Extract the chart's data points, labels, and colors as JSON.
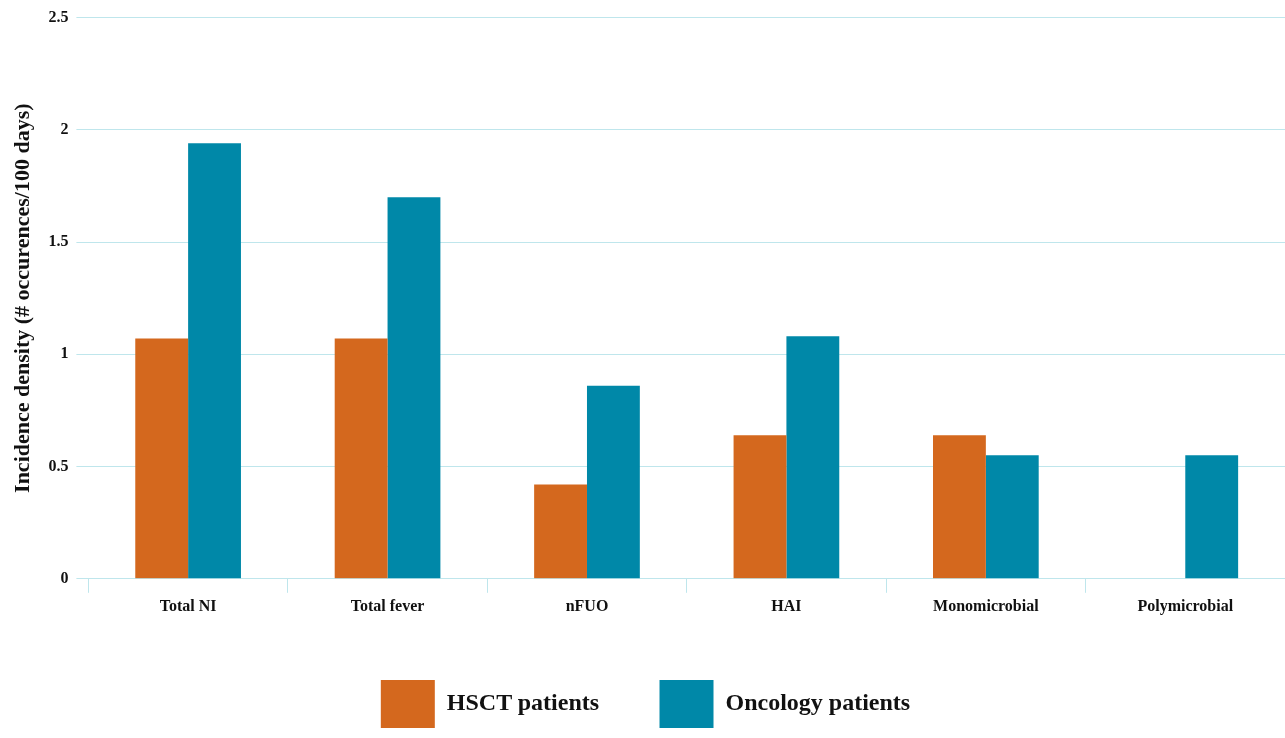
{
  "chart_data": {
    "type": "bar",
    "ylabel": "Incidence density (# occurences/100 days)",
    "categories": [
      "Total NI",
      "Total fever",
      "nFUO",
      "HAI",
      "Monomicrobial",
      "Polymicrobial"
    ],
    "series": [
      {
        "name": "HSCT patients",
        "color": "#d4681e",
        "values": [
          1.07,
          1.07,
          0.42,
          0.64,
          0.64,
          0
        ]
      },
      {
        "name": "Oncology patients",
        "color": "#0088a8",
        "values": [
          1.94,
          1.7,
          0.86,
          1.08,
          0.55,
          0.55
        ]
      }
    ],
    "ylim": [
      0,
      2.5
    ],
    "yticks": [
      0,
      0.5,
      1,
      1.5,
      2,
      2.5
    ],
    "grid": "y",
    "legend": "bottom"
  }
}
